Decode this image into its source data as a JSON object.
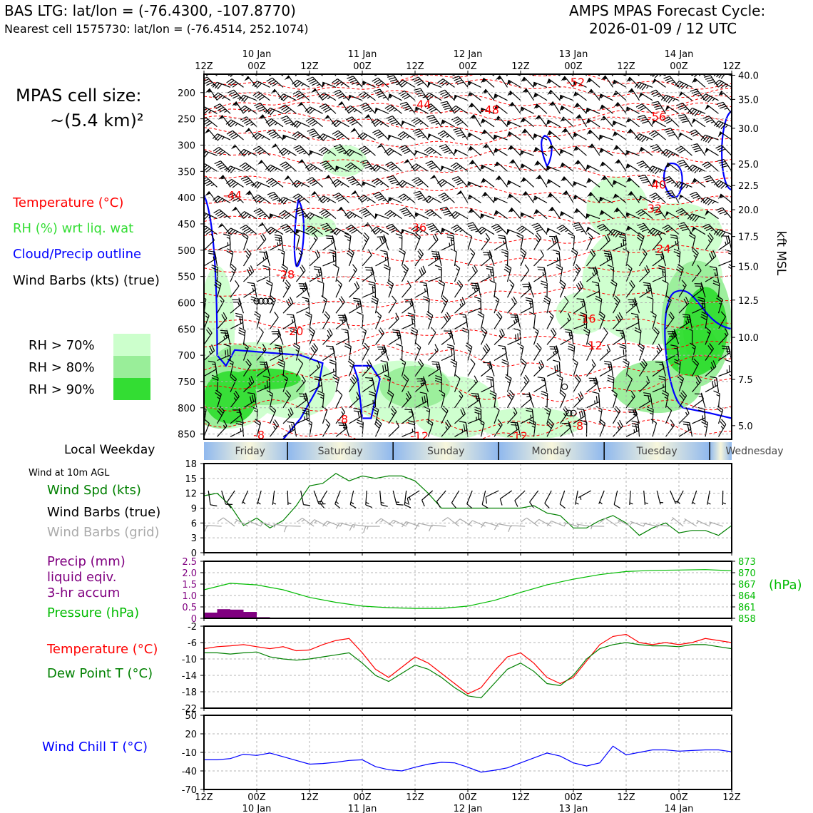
{
  "header": {
    "title_left": "BAS LTG: lat/lon = (-76.4300, -107.8770)",
    "subtitle_left": "Nearest cell 1575730: lat/lon = (-76.4514, 252.1074)",
    "title_right_1": "AMPS MPAS Forecast Cycle:",
    "title_right_2": "2026-01-09 / 12 UTC"
  },
  "sidebar": {
    "cell_size_1": "MPAS cell size:",
    "cell_size_2": "~(5.4 km)²",
    "legend_temperature": "Temperature (°C)",
    "legend_rh": "RH (%) wrt liq. wat",
    "legend_cloud": "Cloud/Precip outline",
    "legend_barbs": "Wind Barbs (kts) (true)",
    "rh_labels": [
      "RH > 70%",
      "RH > 80%",
      "RH > 90%"
    ],
    "weekday_label": "Local Weekday",
    "wind10m_label": "Wind at 10m AGL",
    "wind_spd_label": "Wind Spd (kts)",
    "wind_barbs_true_label": "Wind Barbs (true)",
    "wind_barbs_grid_label": "Wind Barbs (grid)",
    "precip_label_1": "Precip (mm)",
    "precip_label_2": "liquid eqiv.",
    "precip_label_3": "3-hr accum",
    "pressure_label": "Pressure (hPa)",
    "temp_label": "Temperature (°C)",
    "dewpoint_label": "Dew Point T (°C)",
    "windchill_label": "Wind Chill T (°C)"
  },
  "colors": {
    "temperature": "#ff0000",
    "rh": "#33dd33",
    "rh70": "#ccffcc",
    "rh80": "#99ee99",
    "rh90": "#33dd33",
    "cloud_outline": "#0000ff",
    "barbs": "#000000",
    "barbs_grid": "#aaaaaa",
    "wind_speed": "#008000",
    "precip": "#800080",
    "pressure": "#00bb00",
    "dewpoint": "#008000",
    "windchill": "#0000ff"
  },
  "chart_data": [
    {
      "type": "heatmap",
      "name": "time-height cross section",
      "x_labels_top": [
        "12Z",
        "00Z",
        "12Z",
        "00Z",
        "12Z",
        "00Z",
        "12Z",
        "00Z",
        "12Z",
        "00Z",
        "12Z"
      ],
      "x_date_labels": [
        "10 Jan",
        "11 Jan",
        "12 Jan",
        "13 Jan",
        "14 Jan"
      ],
      "y_pressure_ticks": [
        200,
        250,
        300,
        350,
        400,
        450,
        500,
        550,
        600,
        650,
        700,
        750,
        800,
        850
      ],
      "y_pressure_range": [
        165,
        860
      ],
      "y2_kft_ticks": [
        "40.0",
        "35.0",
        "30.0",
        "25.0",
        "22.5",
        "20.0",
        "17.5",
        "15.0",
        "12.5",
        "10.0",
        "7.5",
        "5.0"
      ],
      "y2_kft_pressure": [
        167,
        213,
        268,
        336,
        377,
        423,
        474,
        531,
        595,
        666,
        746,
        834
      ],
      "y2_label": "kft MSL",
      "temp_contour_labels": [
        {
          "value": "-52",
          "t": 84.5,
          "p": 180
        },
        {
          "value": "-44",
          "t": 49.5,
          "p": 222
        },
        {
          "value": "-48",
          "t": 65,
          "p": 232
        },
        {
          "value": "-56",
          "t": 103,
          "p": 246
        },
        {
          "value": "-40",
          "t": 103,
          "p": 375
        },
        {
          "value": "-44",
          "t": 6.5,
          "p": 395
        },
        {
          "value": "-36",
          "t": 48.5,
          "p": 456
        },
        {
          "value": "-32",
          "t": 102,
          "p": 420
        },
        {
          "value": "-24",
          "t": 104,
          "p": 497
        },
        {
          "value": "-28",
          "t": 18.5,
          "p": 546
        },
        {
          "value": "-20",
          "t": 20.5,
          "p": 654
        },
        {
          "value": "-16",
          "t": 87,
          "p": 630
        },
        {
          "value": "-12",
          "t": 88.5,
          "p": 681
        },
        {
          "value": "-8",
          "t": 31.5,
          "p": 821
        },
        {
          "value": "-8",
          "t": 85,
          "p": 834
        },
        {
          "value": "-12",
          "t": 49,
          "p": 853
        },
        {
          "value": "-12",
          "t": 71.5,
          "p": 853
        },
        {
          "value": "-8",
          "t": 12.5,
          "p": 851
        }
      ]
    },
    {
      "type": "line",
      "name": "wind speed 10m",
      "x_hours": [
        0,
        3,
        6,
        9,
        12,
        15,
        18,
        21,
        24,
        27,
        30,
        33,
        36,
        39,
        42,
        45,
        48,
        51,
        54,
        57,
        60,
        63,
        66,
        69,
        72,
        75,
        78,
        81,
        84,
        87,
        90,
        93,
        96,
        99,
        102,
        105,
        108,
        111,
        114,
        117,
        120
      ],
      "series": [
        {
          "values": [
            11.5,
            12,
            9.5,
            5.5,
            7,
            5,
            6.5,
            9.5,
            13.5,
            14,
            16,
            14.5,
            15.5,
            15,
            15.5,
            15.5,
            14.5,
            12,
            9,
            9,
            9,
            9,
            9,
            9,
            9,
            9.5,
            8,
            7.5,
            5,
            5,
            6.5,
            7.5,
            6,
            3.5,
            5,
            6,
            4,
            4.5,
            4.5,
            3.5,
            5.5
          ]
        }
      ],
      "ylim": [
        0,
        18
      ],
      "yticks": [
        0,
        3,
        6,
        9,
        12,
        15,
        18
      ]
    },
    {
      "type": "bar",
      "name": "precip 3hr",
      "x_hours": [
        1.5,
        4.5,
        7.5,
        10.5,
        13.5
      ],
      "values": [
        0.25,
        0.4,
        0.38,
        0.28,
        0.05
      ],
      "ylim": [
        0,
        2.5
      ],
      "yticks": [
        "0",
        "0.5",
        "1.0",
        "1.5",
        "2.0",
        "2.5"
      ]
    },
    {
      "type": "line",
      "name": "pressure",
      "x_hours": [
        0,
        6,
        12,
        18,
        24,
        30,
        36,
        42,
        48,
        54,
        60,
        66,
        72,
        78,
        84,
        90,
        96,
        102,
        108,
        114,
        120
      ],
      "series": [
        {
          "values": [
            865.5,
            867.2,
            866.8,
            865.5,
            863.5,
            862.2,
            861.2,
            860.8,
            860.6,
            860.6,
            861.2,
            862.7,
            864.8,
            866.8,
            868.3,
            869.5,
            870.3,
            870.6,
            870.7,
            870.8,
            870.5
          ]
        }
      ],
      "ylim": [
        858,
        873
      ],
      "yticks": [
        858,
        861,
        864,
        867,
        870,
        873
      ],
      "y2label": "(hPa)"
    },
    {
      "type": "line",
      "name": "temperature dewpoint",
      "x_hours": [
        0,
        3,
        6,
        9,
        12,
        15,
        18,
        21,
        24,
        27,
        30,
        33,
        36,
        39,
        42,
        45,
        48,
        51,
        54,
        57,
        60,
        63,
        66,
        69,
        72,
        75,
        78,
        81,
        84,
        87,
        90,
        93,
        96,
        99,
        102,
        105,
        108,
        111,
        114,
        117,
        120
      ],
      "series": [
        {
          "values": [
            -7.5,
            -7,
            -6.8,
            -6.5,
            -7,
            -7.5,
            -7,
            -8,
            -7.8,
            -6.5,
            -5.5,
            -5,
            -8.5,
            -12.5,
            -14.5,
            -12,
            -9.5,
            -11,
            -13.5,
            -16,
            -18.5,
            -17,
            -13,
            -9.5,
            -8.5,
            -11,
            -14.5,
            -16,
            -14.5,
            -10.5,
            -6.5,
            -4.5,
            -4,
            -6,
            -6.5,
            -6,
            -6.5,
            -6,
            -5,
            -5.5,
            -6
          ]
        },
        {
          "values": [
            -8.5,
            -8.5,
            -8.8,
            -8.5,
            -8.3,
            -9.5,
            -10,
            -10.3,
            -10,
            -9.5,
            -9,
            -8.5,
            -11,
            -14,
            -15.5,
            -13.5,
            -11.5,
            -12.5,
            -14.5,
            -17,
            -19,
            -19.5,
            -16,
            -12.5,
            -11,
            -13,
            -16,
            -16.5,
            -14,
            -10,
            -7.5,
            -6.5,
            -6,
            -6.5,
            -6.8,
            -6.8,
            -7,
            -6.5,
            -6.5,
            -7,
            -7.5
          ]
        }
      ],
      "ylim": [
        -22,
        -2
      ],
      "yticks": [
        -22,
        -18,
        -14,
        -10,
        -6,
        -2
      ]
    },
    {
      "type": "line",
      "name": "wind chill",
      "x_hours": [
        0,
        3,
        6,
        9,
        12,
        15,
        18,
        21,
        24,
        27,
        30,
        33,
        36,
        39,
        42,
        45,
        48,
        51,
        54,
        57,
        60,
        63,
        66,
        69,
        72,
        75,
        78,
        81,
        84,
        87,
        90,
        93,
        96,
        99,
        102,
        105,
        108,
        111,
        114,
        117,
        120
      ],
      "series": [
        {
          "values": [
            -22,
            -22,
            -20,
            -13,
            -15,
            -11,
            -17,
            -23,
            -29,
            -28,
            -26,
            -23,
            -22,
            -33,
            -38,
            -40,
            -34,
            -29,
            -26,
            -27,
            -34,
            -42,
            -39,
            -35,
            -27,
            -19,
            -11,
            -16,
            -27,
            -32,
            -27,
            0,
            -14,
            -10,
            -6,
            -6,
            -8,
            -7,
            -6,
            -6,
            -9
          ]
        }
      ],
      "ylim": [
        -70,
        50
      ],
      "yticks": [
        -70,
        -40,
        -10,
        20,
        50
      ]
    }
  ],
  "weekdays": [
    "Friday",
    "Saturday",
    "Sunday",
    "Monday",
    "Tuesday",
    "Wednesday"
  ],
  "bottom_axis": {
    "hour_labels": [
      "12Z",
      "00Z",
      "12Z",
      "00Z",
      "12Z",
      "00Z",
      "12Z",
      "00Z",
      "12Z",
      "00Z",
      "12Z"
    ],
    "date_labels": [
      "10 Jan",
      "11 Jan",
      "12 Jan",
      "13 Jan",
      "14 Jan"
    ]
  }
}
